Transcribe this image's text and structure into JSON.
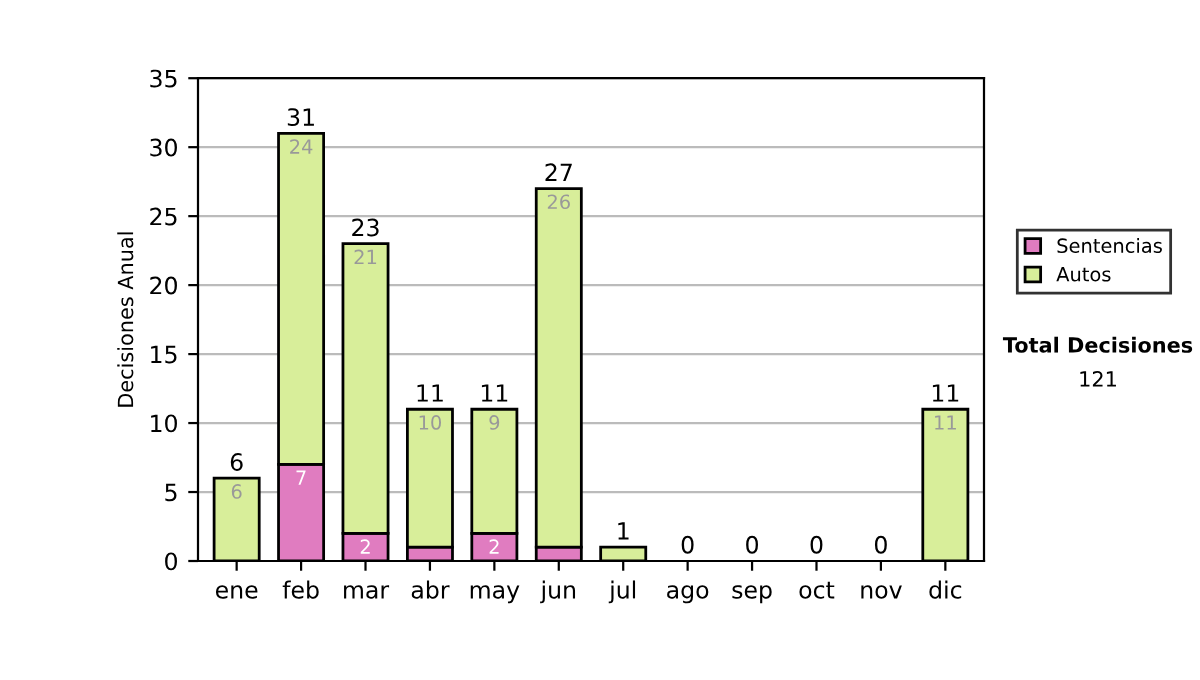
{
  "chart_data": {
    "type": "bar",
    "stacked": true,
    "ylabel": "Decisiones Anual",
    "categories": [
      "ene",
      "feb",
      "mar",
      "abr",
      "may",
      "jun",
      "jul",
      "ago",
      "sep",
      "oct",
      "nov",
      "dic"
    ],
    "series": [
      {
        "name": "Sentencias",
        "color": "#e07cc0",
        "values": [
          0,
          7,
          2,
          1,
          2,
          1,
          0,
          0,
          0,
          0,
          0,
          0
        ],
        "value_labels": [
          null,
          "7",
          "2",
          null,
          "2",
          null,
          null,
          null,
          null,
          null,
          null,
          null
        ]
      },
      {
        "name": "Autos",
        "color": "#d8ee9a",
        "values": [
          6,
          24,
          21,
          10,
          9,
          26,
          1,
          0,
          0,
          0,
          0,
          11
        ],
        "value_labels": [
          "6",
          "24",
          "21",
          "10",
          "9",
          "26",
          null,
          null,
          null,
          null,
          null,
          "11"
        ]
      }
    ],
    "totals": [
      "6",
      "31",
      "23",
      "11",
      "11",
      "27",
      "1",
      "0",
      "0",
      "0",
      "0",
      "11"
    ],
    "ylim": [
      0,
      35
    ],
    "yticks": [
      0,
      5,
      10,
      15,
      20,
      25,
      30,
      35
    ],
    "grid": "y",
    "legend": "right",
    "annotations": [
      "Total Decisiones",
      "121"
    ]
  }
}
